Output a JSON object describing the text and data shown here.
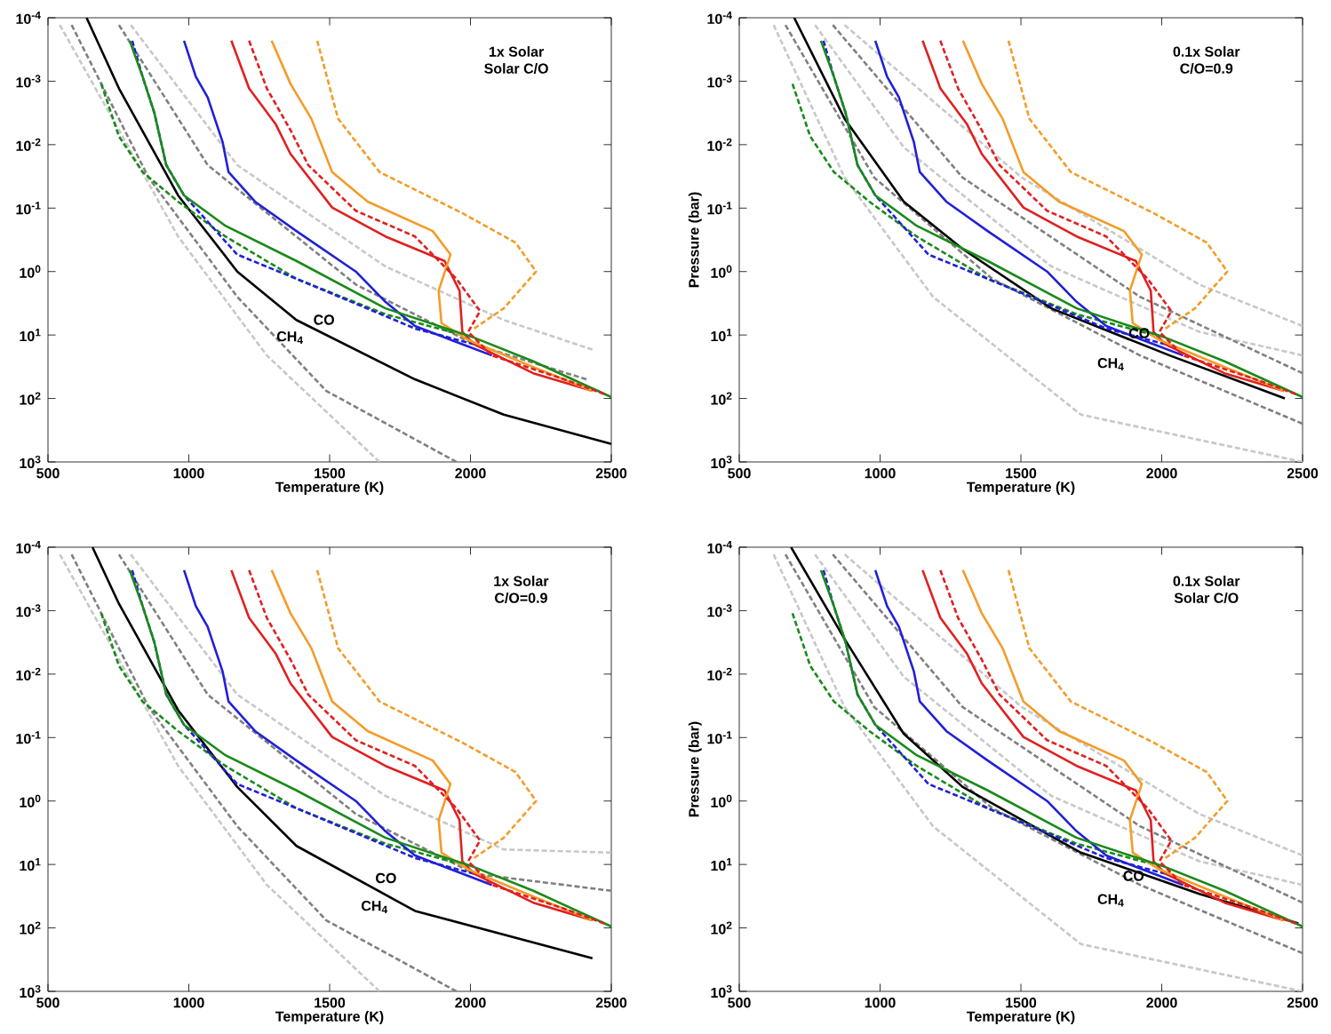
{
  "chart_data": [
    {
      "type": "line",
      "log": "y",
      "xlim": [
        500,
        2500
      ],
      "ylim": [
        1000,
        0.0001
      ],
      "xticks": [
        500,
        1000,
        1500,
        2000,
        2500
      ],
      "yticks": [
        {
          "value": 0.0001,
          "label": "10$^{-4}$"
        },
        {
          "value": 0.001,
          "label": "10$^{-3}$"
        },
        {
          "value": 0.01,
          "label": "10$^{-2}$"
        },
        {
          "value": 0.1,
          "label": "10$^{-1}$"
        },
        {
          "value": 1,
          "label": "10$^{0}$"
        },
        {
          "value": 10,
          "label": "10$^{1}$"
        },
        {
          "value": 100,
          "label": "10$^{2}$"
        },
        {
          "value": 1000,
          "label": "10$^{3}$"
        }
      ],
      "xlabel": "Temperature (K)",
      "annotations": [
        "1x Solar",
        "Solar C/O",
        "CO",
        "CH$_{4}$"
      ],
      "series": [
        {
          "color": "#c8c8c8",
          "line_style": "dashed",
          "x": [
            542,
            752,
            962,
            1277,
            1677
          ],
          "values": [
            0.00013,
            0.0059,
            0.28,
            21,
            1000
          ]
        },
        {
          "color": "#808080",
          "line_style": "dashed",
          "x": [
            584,
            857,
            1172,
            1488,
            1950
          ],
          "values": [
            0.00013,
            0.033,
            2.5,
            76,
            1000
          ]
        },
        {
          "color": "#808080",
          "line_style": "dashed",
          "x": [
            752,
            1067,
            1593,
            2013,
            2412
          ],
          "values": [
            0.00013,
            0.021,
            1.6,
            14,
            50
          ]
        },
        {
          "color": "#c8c8c8",
          "line_style": "dashed",
          "x": [
            794,
            1172,
            1698,
            2118,
            2433
          ],
          "values": [
            0.00013,
            0.021,
            0.83,
            5.8,
            17
          ]
        },
        {
          "color": "#000000",
          "line_style": "solid",
          "x": [
            637,
            752,
            962,
            1172,
            1382,
            1803,
            2118,
            2500
          ],
          "values": [
            0.0001,
            0.0013,
            0.063,
            1.0,
            5.8,
            50,
            180,
            520
          ]
        },
        {
          "color": "#1a8a1a",
          "line_style": "dashed",
          "x": [
            689,
            752,
            836,
            962,
            1130,
            1382,
            1698,
            1971
          ],
          "values": [
            0.0011,
            0.0074,
            0.027,
            0.079,
            0.28,
            1.3,
            4.7,
            10
          ]
        },
        {
          "color": "#2020d8",
          "line_style": "dashed",
          "x": [
            799,
            836,
            878,
            920,
            983,
            1172,
            1382,
            1803,
            2013
          ],
          "values": [
            0.00023,
            0.00085,
            0.0032,
            0.021,
            0.063,
            0.54,
            1.3,
            7.9,
            14
          ]
        },
        {
          "color": "#2020d8",
          "line_style": "solid",
          "x": [
            983,
            1025,
            1067,
            1120,
            1141,
            1235,
            1382,
            1593,
            1698,
            1803,
            1971,
            2076
          ],
          "values": [
            0.00023,
            0.00085,
            0.0018,
            0.0091,
            0.027,
            0.079,
            0.23,
            1.0,
            3.0,
            7.2,
            14,
            21
          ]
        },
        {
          "color": "#e02020",
          "line_style": "dashed",
          "x": [
            1214,
            1277,
            1361,
            1424,
            1593,
            1803,
            1950,
            2034,
            1992,
            2076,
            2328,
            2475
          ],
          "values": [
            0.00023,
            0.0013,
            0.0059,
            0.021,
            0.11,
            0.28,
            1.3,
            4.2,
            8.9,
            21,
            49,
            85
          ]
        },
        {
          "color": "#e02020",
          "line_style": "solid",
          "x": [
            1151,
            1214,
            1309,
            1361,
            1509,
            1698,
            1908,
            1961,
            1971,
            2013,
            2223,
            2433
          ],
          "values": [
            0.00023,
            0.0013,
            0.0048,
            0.014,
            0.098,
            0.28,
            0.68,
            2.0,
            8.9,
            14,
            40,
            76
          ]
        },
        {
          "color": "#f39c28",
          "line_style": "dashed",
          "x": [
            1456,
            1530,
            1677,
            1971,
            2160,
            2233,
            2118,
            2013
          ],
          "values": [
            0.00023,
            0.0039,
            0.027,
            0.12,
            0.35,
            1.0,
            3.8,
            7.9
          ]
        },
        {
          "color": "#f39c28",
          "line_style": "solid",
          "x": [
            1294,
            1361,
            1435,
            1509,
            1635,
            1866,
            1929,
            1887,
            1897,
            1992,
            2223,
            2433
          ],
          "values": [
            0.00023,
            0.0011,
            0.0039,
            0.027,
            0.079,
            0.23,
            0.54,
            2.0,
            6.5,
            12,
            32,
            76
          ]
        },
        {
          "color": "#1a8a1a",
          "line_style": "solid",
          "x": [
            790,
            836,
            878,
            920,
            983,
            1130,
            1382,
            1698,
            2013,
            2223,
            2500
          ],
          "values": [
            0.00023,
            0.00085,
            0.0032,
            0.021,
            0.063,
            0.19,
            0.68,
            3.8,
            11,
            26,
            95
          ]
        }
      ]
    },
    {
      "type": "line",
      "log": "y",
      "xlim": [
        500,
        2500
      ],
      "ylim": [
        1000,
        0.0001
      ],
      "xticks": [
        500,
        1000,
        1500,
        2000,
        2500
      ],
      "yticks": [
        {
          "value": 0.0001,
          "label": "10$^{-4}$"
        },
        {
          "value": 0.001,
          "label": "10$^{-3}$"
        },
        {
          "value": 0.01,
          "label": "10$^{-2}$"
        },
        {
          "value": 0.1,
          "label": "10$^{-1}$"
        },
        {
          "value": 1,
          "label": "10$^{0}$"
        },
        {
          "value": 10,
          "label": "10$^{1}$"
        },
        {
          "value": 100,
          "label": "10$^{2}$"
        },
        {
          "value": 1000,
          "label": "10$^{3}$"
        }
      ],
      "xlabel": "Temperature (K)",
      "ylabel": "Pressure (bar)",
      "annotations": [
        "0.1x Solar",
        "C/O=0.9",
        "CO",
        "CH$_{4}$"
      ],
      "series": [
        {
          "color": "#c8c8c8",
          "line_style": "dashed",
          "x": [
            622,
            874,
            1188,
            1713,
            2500
          ],
          "values": [
            0.00013,
            0.033,
            2.5,
            180,
            1000
          ]
        },
        {
          "color": "#808080",
          "line_style": "dashed",
          "x": [
            664,
            979,
            1398,
            1923,
            2500
          ],
          "values": [
            0.00013,
            0.033,
            1.3,
            21,
            250
          ]
        },
        {
          "color": "#c8c8c8",
          "line_style": "dashed",
          "x": [
            769,
            1084,
            1608,
            2133,
            2500
          ],
          "values": [
            0.00013,
            0.011,
            0.83,
            8.9,
            21
          ]
        },
        {
          "color": "#808080",
          "line_style": "dashed",
          "x": [
            832,
            1293,
            1923,
            2500
          ],
          "values": [
            0.00013,
            0.033,
            2.5,
            40
          ]
        },
        {
          "color": "#c8c8c8",
          "line_style": "dashed",
          "x": [
            874,
            1503,
            2133,
            2500
          ],
          "values": [
            0.00013,
            0.033,
            1.6,
            7.2
          ]
        },
        {
          "color": "#000000",
          "line_style": "solid",
          "x": [
            695,
            874,
            1084,
            1293,
            1608,
            2028,
            2437
          ],
          "values": [
            0.0001,
            0.0039,
            0.079,
            0.44,
            3.8,
            21,
            100
          ]
        },
        {
          "color": "#1a8a1a",
          "line_style": "dashed",
          "x": [
            689,
            752,
            836,
            962,
            1130,
            1382,
            1698,
            1971
          ],
          "values": [
            0.0011,
            0.0074,
            0.027,
            0.079,
            0.28,
            1.3,
            4.7,
            10
          ]
        },
        {
          "color": "#2020d8",
          "line_style": "dashed",
          "x": [
            799,
            836,
            878,
            920,
            983,
            1172,
            1382,
            1803,
            2013
          ],
          "values": [
            0.00023,
            0.00085,
            0.0032,
            0.021,
            0.063,
            0.54,
            1.3,
            7.9,
            14
          ]
        },
        {
          "color": "#2020d8",
          "line_style": "solid",
          "x": [
            983,
            1025,
            1067,
            1120,
            1141,
            1235,
            1382,
            1593,
            1698,
            1803,
            1971,
            2076
          ],
          "values": [
            0.00023,
            0.00085,
            0.0018,
            0.0091,
            0.027,
            0.079,
            0.23,
            1.0,
            3.0,
            7.2,
            14,
            21
          ]
        },
        {
          "color": "#e02020",
          "line_style": "dashed",
          "x": [
            1214,
            1277,
            1361,
            1424,
            1593,
            1803,
            1950,
            2034,
            1992,
            2076,
            2328,
            2475
          ],
          "values": [
            0.00023,
            0.0013,
            0.0059,
            0.021,
            0.11,
            0.28,
            1.3,
            4.2,
            8.9,
            21,
            49,
            85
          ]
        },
        {
          "color": "#e02020",
          "line_style": "solid",
          "x": [
            1151,
            1214,
            1309,
            1361,
            1509,
            1698,
            1908,
            1961,
            1971,
            2013,
            2223,
            2433
          ],
          "values": [
            0.00023,
            0.0013,
            0.0048,
            0.014,
            0.098,
            0.28,
            0.68,
            2.0,
            8.9,
            14,
            40,
            76
          ]
        },
        {
          "color": "#f39c28",
          "line_style": "dashed",
          "x": [
            1456,
            1530,
            1677,
            1971,
            2160,
            2233,
            2118,
            2013
          ],
          "values": [
            0.00023,
            0.0039,
            0.027,
            0.12,
            0.35,
            1.0,
            3.8,
            7.9
          ]
        },
        {
          "color": "#f39c28",
          "line_style": "solid",
          "x": [
            1294,
            1361,
            1435,
            1509,
            1635,
            1866,
            1929,
            1887,
            1897,
            1992,
            2223,
            2433
          ],
          "values": [
            0.00023,
            0.0011,
            0.0039,
            0.027,
            0.079,
            0.23,
            0.54,
            2.0,
            6.5,
            12,
            32,
            76
          ]
        },
        {
          "color": "#1a8a1a",
          "line_style": "solid",
          "x": [
            790,
            836,
            878,
            920,
            983,
            1130,
            1382,
            1698,
            2013,
            2223,
            2500
          ],
          "values": [
            0.00023,
            0.00085,
            0.0032,
            0.021,
            0.063,
            0.19,
            0.68,
            3.8,
            11,
            26,
            95
          ]
        }
      ]
    },
    {
      "type": "line",
      "log": "y",
      "xlim": [
        500,
        2500
      ],
      "ylim": [
        1000,
        0.0001
      ],
      "xticks": [
        500,
        1000,
        1500,
        2000,
        2500
      ],
      "yticks": [
        {
          "value": 0.0001,
          "label": "10$^{-4}$"
        },
        {
          "value": 0.001,
          "label": "10$^{-3}$"
        },
        {
          "value": 0.01,
          "label": "10$^{-2}$"
        },
        {
          "value": 0.1,
          "label": "10$^{-1}$"
        },
        {
          "value": 1,
          "label": "10$^{0}$"
        },
        {
          "value": 10,
          "label": "10$^{1}$"
        },
        {
          "value": 100,
          "label": "10$^{2}$"
        },
        {
          "value": 1000,
          "label": "10$^{3}$"
        }
      ],
      "xlabel": "Temperature (K)",
      "annotations": [
        "1x Solar",
        "C/O=0.9",
        "CO",
        "CH$_{4}$"
      ],
      "series": [
        {
          "color": "#c8c8c8",
          "line_style": "dashed",
          "x": [
            542,
            752,
            962,
            1277,
            1677
          ],
          "values": [
            0.00013,
            0.0059,
            0.28,
            21,
            1000
          ]
        },
        {
          "color": "#808080",
          "line_style": "dashed",
          "x": [
            584,
            857,
            1172,
            1488,
            1950
          ],
          "values": [
            0.00013,
            0.033,
            2.5,
            76,
            1000
          ]
        },
        {
          "color": "#808080",
          "line_style": "dashed",
          "x": [
            752,
            1067,
            1593,
            2013,
            2500
          ],
          "values": [
            0.00013,
            0.021,
            1.6,
            14,
            26
          ]
        },
        {
          "color": "#c8c8c8",
          "line_style": "dashed",
          "x": [
            794,
            1172,
            1698,
            2118,
            2500
          ],
          "values": [
            0.00013,
            0.021,
            0.83,
            5.8,
            6.5
          ]
        },
        {
          "color": "#000000",
          "line_style": "solid",
          "x": [
            658,
            752,
            962,
            1172,
            1382,
            1803,
            2433
          ],
          "values": [
            0.0001,
            0.00078,
            0.037,
            0.6,
            5.1,
            54,
            300
          ]
        },
        {
          "color": "#1a8a1a",
          "line_style": "dashed",
          "x": [
            689,
            752,
            836,
            962,
            1130,
            1382,
            1698,
            1971
          ],
          "values": [
            0.0011,
            0.0074,
            0.027,
            0.079,
            0.28,
            1.3,
            4.7,
            10
          ]
        },
        {
          "color": "#2020d8",
          "line_style": "dashed",
          "x": [
            799,
            836,
            878,
            920,
            983,
            1172,
            1382,
            1803,
            2013
          ],
          "values": [
            0.00023,
            0.00085,
            0.0032,
            0.021,
            0.063,
            0.54,
            1.3,
            7.9,
            14
          ]
        },
        {
          "color": "#2020d8",
          "line_style": "solid",
          "x": [
            983,
            1025,
            1067,
            1120,
            1141,
            1235,
            1382,
            1593,
            1698,
            1803,
            1971,
            2076
          ],
          "values": [
            0.00023,
            0.00085,
            0.0018,
            0.0091,
            0.027,
            0.079,
            0.23,
            1.0,
            3.0,
            7.2,
            14,
            21
          ]
        },
        {
          "color": "#e02020",
          "line_style": "dashed",
          "x": [
            1214,
            1277,
            1361,
            1424,
            1593,
            1803,
            1950,
            2034,
            1992,
            2076,
            2328,
            2475
          ],
          "values": [
            0.00023,
            0.0013,
            0.0059,
            0.021,
            0.11,
            0.28,
            1.3,
            4.2,
            8.9,
            21,
            49,
            85
          ]
        },
        {
          "color": "#e02020",
          "line_style": "solid",
          "x": [
            1151,
            1214,
            1309,
            1361,
            1509,
            1698,
            1908,
            1961,
            1971,
            2013,
            2223,
            2433
          ],
          "values": [
            0.00023,
            0.0013,
            0.0048,
            0.014,
            0.098,
            0.28,
            0.68,
            2.0,
            8.9,
            14,
            40,
            76
          ]
        },
        {
          "color": "#f39c28",
          "line_style": "dashed",
          "x": [
            1456,
            1530,
            1677,
            1971,
            2160,
            2233,
            2118,
            2013
          ],
          "values": [
            0.00023,
            0.0039,
            0.027,
            0.12,
            0.35,
            1.0,
            3.8,
            7.9
          ]
        },
        {
          "color": "#f39c28",
          "line_style": "solid",
          "x": [
            1294,
            1361,
            1435,
            1509,
            1635,
            1866,
            1929,
            1887,
            1897,
            1992,
            2223,
            2433
          ],
          "values": [
            0.00023,
            0.0011,
            0.0039,
            0.027,
            0.079,
            0.23,
            0.54,
            2.0,
            6.5,
            12,
            32,
            76
          ]
        },
        {
          "color": "#1a8a1a",
          "line_style": "solid",
          "x": [
            790,
            836,
            878,
            920,
            983,
            1130,
            1382,
            1698,
            2013,
            2223,
            2500
          ],
          "values": [
            0.00023,
            0.00085,
            0.0032,
            0.021,
            0.063,
            0.19,
            0.68,
            3.8,
            11,
            26,
            95
          ]
        }
      ]
    },
    {
      "type": "line",
      "log": "y",
      "xlim": [
        500,
        2500
      ],
      "ylim": [
        1000,
        0.0001
      ],
      "xticks": [
        500,
        1000,
        1500,
        2000,
        2500
      ],
      "yticks": [
        {
          "value": 0.0001,
          "label": "10$^{-4}$"
        },
        {
          "value": 0.001,
          "label": "10$^{-3}$"
        },
        {
          "value": 0.01,
          "label": "10$^{-2}$"
        },
        {
          "value": 0.1,
          "label": "10$^{-1}$"
        },
        {
          "value": 1,
          "label": "10$^{0}$"
        },
        {
          "value": 10,
          "label": "10$^{1}$"
        },
        {
          "value": 100,
          "label": "10$^{2}$"
        },
        {
          "value": 1000,
          "label": "10$^{3}$"
        }
      ],
      "xlabel": "Temperature (K)",
      "ylabel": "Pressure (bar)",
      "annotations": [
        "0.1x Solar",
        "Solar C/O",
        "CO",
        "CH$_{4}$"
      ],
      "series": [
        {
          "color": "#c8c8c8",
          "line_style": "dashed",
          "x": [
            622,
            874,
            1188,
            1713,
            2500
          ],
          "values": [
            0.00013,
            0.033,
            2.5,
            180,
            1000
          ]
        },
        {
          "color": "#808080",
          "line_style": "dashed",
          "x": [
            664,
            979,
            1398,
            1923,
            2500
          ],
          "values": [
            0.00013,
            0.033,
            1.3,
            21,
            250
          ]
        },
        {
          "color": "#c8c8c8",
          "line_style": "dashed",
          "x": [
            769,
            1084,
            1608,
            2133,
            2500
          ],
          "values": [
            0.00013,
            0.011,
            0.83,
            8.9,
            21
          ]
        },
        {
          "color": "#808080",
          "line_style": "dashed",
          "x": [
            832,
            1293,
            1923,
            2500
          ],
          "values": [
            0.00013,
            0.033,
            2.5,
            40
          ]
        },
        {
          "color": "#c8c8c8",
          "line_style": "dashed",
          "x": [
            874,
            1503,
            2133,
            2500
          ],
          "values": [
            0.00013,
            0.033,
            1.6,
            7.2
          ]
        },
        {
          "color": "#000000",
          "line_style": "solid",
          "x": [
            684,
            874,
            1084,
            1293,
            1713,
            2133,
            2485
          ],
          "values": [
            0.0001,
            0.0028,
            0.087,
            0.6,
            6.5,
            29,
            85
          ]
        },
        {
          "color": "#1a8a1a",
          "line_style": "dashed",
          "x": [
            689,
            752,
            836,
            962,
            1130,
            1382,
            1698,
            1971
          ],
          "values": [
            0.0011,
            0.0074,
            0.027,
            0.079,
            0.28,
            1.3,
            4.7,
            10
          ]
        },
        {
          "color": "#2020d8",
          "line_style": "dashed",
          "x": [
            799,
            836,
            878,
            920,
            983,
            1172,
            1382,
            1803,
            2013
          ],
          "values": [
            0.00023,
            0.00085,
            0.0032,
            0.021,
            0.063,
            0.54,
            1.3,
            7.9,
            14
          ]
        },
        {
          "color": "#2020d8",
          "line_style": "solid",
          "x": [
            983,
            1025,
            1067,
            1120,
            1141,
            1235,
            1382,
            1593,
            1698,
            1803,
            1971,
            2076
          ],
          "values": [
            0.00023,
            0.00085,
            0.0018,
            0.0091,
            0.027,
            0.079,
            0.23,
            1.0,
            3.0,
            7.2,
            14,
            21
          ]
        },
        {
          "color": "#e02020",
          "line_style": "dashed",
          "x": [
            1214,
            1277,
            1361,
            1424,
            1593,
            1803,
            1950,
            2034,
            1992,
            2076,
            2328,
            2475
          ],
          "values": [
            0.00023,
            0.0013,
            0.0059,
            0.021,
            0.11,
            0.28,
            1.3,
            4.2,
            8.9,
            21,
            49,
            85
          ]
        },
        {
          "color": "#e02020",
          "line_style": "solid",
          "x": [
            1151,
            1214,
            1309,
            1361,
            1509,
            1698,
            1908,
            1961,
            1971,
            2013,
            2223,
            2433
          ],
          "values": [
            0.00023,
            0.0013,
            0.0048,
            0.014,
            0.098,
            0.28,
            0.68,
            2.0,
            8.9,
            14,
            40,
            76
          ]
        },
        {
          "color": "#f39c28",
          "line_style": "dashed",
          "x": [
            1456,
            1530,
            1677,
            1971,
            2160,
            2233,
            2118,
            2013
          ],
          "values": [
            0.00023,
            0.0039,
            0.027,
            0.12,
            0.35,
            1.0,
            3.8,
            7.9
          ]
        },
        {
          "color": "#f39c28",
          "line_style": "solid",
          "x": [
            1294,
            1361,
            1435,
            1509,
            1635,
            1866,
            1929,
            1887,
            1897,
            1992,
            2223,
            2433
          ],
          "values": [
            0.00023,
            0.0011,
            0.0039,
            0.027,
            0.079,
            0.23,
            0.54,
            2.0,
            6.5,
            12,
            32,
            76
          ]
        },
        {
          "color": "#1a8a1a",
          "line_style": "solid",
          "x": [
            790,
            836,
            878,
            920,
            983,
            1130,
            1382,
            1698,
            2013,
            2223,
            2500
          ],
          "values": [
            0.00023,
            0.00085,
            0.0032,
            0.021,
            0.063,
            0.19,
            0.68,
            3.8,
            11,
            26,
            95
          ]
        }
      ]
    }
  ]
}
